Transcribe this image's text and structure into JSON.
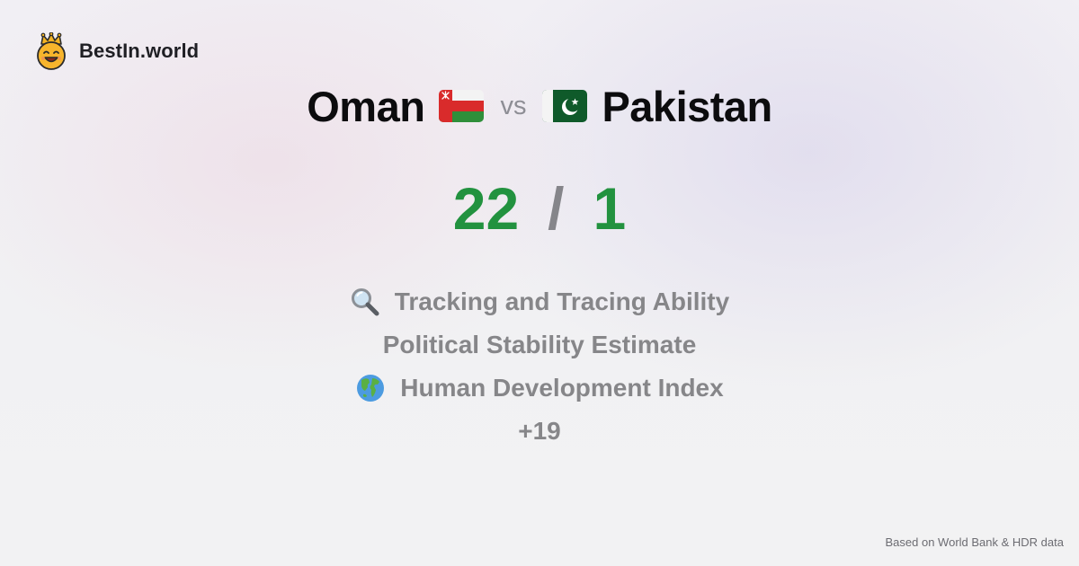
{
  "brand": {
    "name": "BestIn.world",
    "logo_icon": "crown-smiley-icon"
  },
  "comparison": {
    "left": {
      "name": "Oman",
      "flag_icon": "oman-flag-icon",
      "score": "22"
    },
    "vs_label": "vs",
    "right": {
      "name": "Pakistan",
      "flag_icon": "pakistan-flag-icon",
      "score": "1"
    },
    "separator": "/"
  },
  "metrics": [
    {
      "icon": "magnifying-glass-icon",
      "label": "Tracking and Tracing Ability"
    },
    {
      "icon": "",
      "label": "Political Stability Estimate"
    },
    {
      "icon": "globe-icon",
      "label": "Human Development Index"
    }
  ],
  "more_label": "+19",
  "footer": {
    "source_text": "Based on World Bank & HDR data"
  },
  "colors": {
    "score_green": "#22923f",
    "muted_gray": "#868689",
    "title_black": "#0c0c0e"
  }
}
